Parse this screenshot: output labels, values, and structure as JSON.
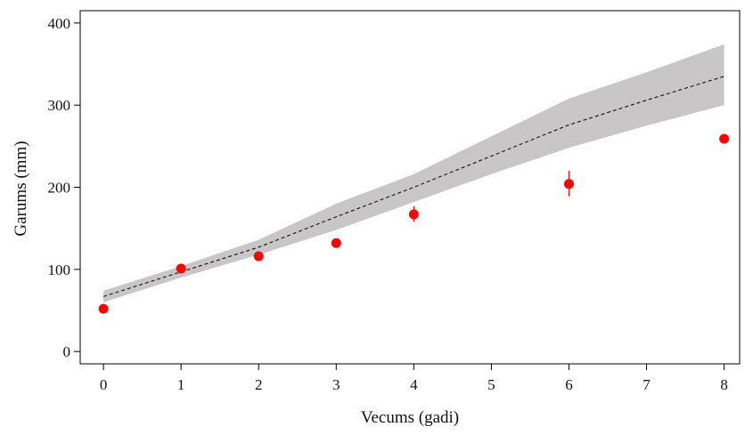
{
  "chart_data": {
    "type": "line",
    "xlabel": "Vecums (gadi)",
    "ylabel": "Garums  (mm)",
    "xlim": [
      -0.3,
      8.2
    ],
    "ylim": [
      -15,
      415
    ],
    "x_ticks": [
      "0",
      "1",
      "2",
      "3",
      "4",
      "5",
      "6",
      "7",
      "8"
    ],
    "y_ticks": [
      "0",
      "100",
      "200",
      "300",
      "400"
    ],
    "grid": false,
    "legend": "none",
    "band": {
      "x": [
        0,
        1,
        2,
        3,
        4,
        5,
        6,
        7,
        8
      ],
      "lower": [
        60,
        90,
        118,
        148,
        182,
        216,
        248,
        275,
        300
      ],
      "upper": [
        74,
        104,
        136,
        180,
        216,
        262,
        308,
        340,
        374
      ],
      "color": "#c8c6c6"
    },
    "series": [
      {
        "kind": "line",
        "x": [
          0,
          1,
          2,
          3,
          4,
          5,
          6,
          7,
          8
        ],
        "values": [
          67,
          97,
          127,
          164,
          200,
          238,
          276,
          306,
          335
        ],
        "color": "#000000",
        "style": "dashed"
      },
      {
        "kind": "points",
        "x": [
          0,
          1,
          2,
          3,
          4,
          6,
          8
        ],
        "values": [
          52,
          101,
          116,
          132,
          167,
          204,
          259
        ],
        "err_low": [
          50,
          99,
          113,
          129,
          158,
          189,
          256
        ],
        "err_high": [
          54,
          103,
          119,
          135,
          177,
          220,
          262
        ],
        "color": "#ff0000"
      }
    ]
  }
}
